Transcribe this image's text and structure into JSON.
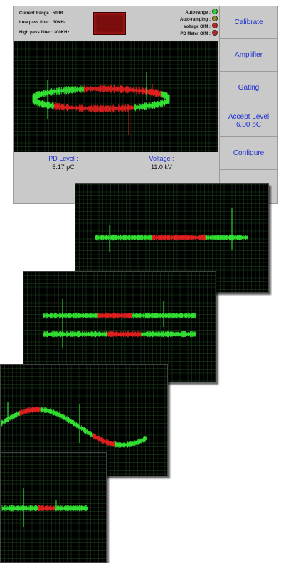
{
  "header": {
    "current_range": "Current Range : 50dB",
    "low_pass": "Low pass filter : 30KHz",
    "high_pass": "High pass filter : 300KHz"
  },
  "status": {
    "auto_range": "Auto-range :",
    "auto_ramping": "Auto-ramping :",
    "voltage_on": "Voltage O/M :",
    "pd_meter_on": "PD Meter O/M :",
    "colors": {
      "green": "#2fd12f",
      "olive": "#8a8a2a",
      "red": "#c82020"
    }
  },
  "buttons": {
    "calibrate": "Calibrate",
    "amplifier": "Amplifier",
    "gating": "Gating",
    "accept_level_line1": "Accept Level",
    "accept_level_line2": "6.00 pC",
    "configure": "Configure"
  },
  "readout": {
    "pd_label": "PD Level :",
    "pd_value": "5.17 pC",
    "voltage_label": "Voltage :",
    "voltage_value": "11.0 kV"
  },
  "colors": {
    "trace_green": "#33e033",
    "trace_red": "#e02020",
    "grid": "#1f4a1f",
    "screen": "#000000"
  },
  "icons": [
    "status-lamp-icon"
  ]
}
